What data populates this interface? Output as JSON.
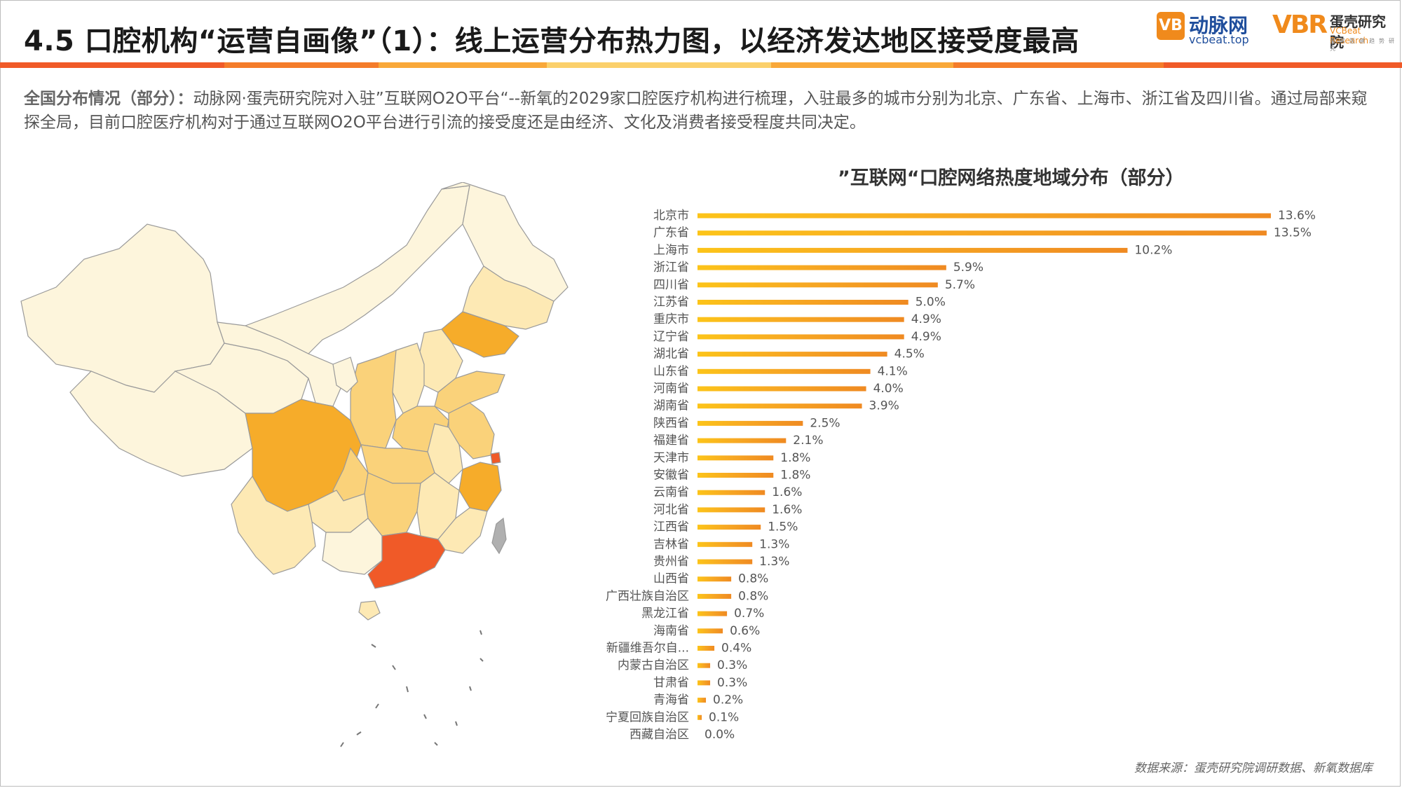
{
  "header": {
    "title": "4.5 口腔机构“运营自画像”（1）：线上运营分布热力图，以经济发达地区接受度最高",
    "stripe_colors": [
      "#f05a28",
      "#f47c2a",
      "#f9a839",
      "#fbd06b",
      "#f9a839",
      "#f47c2a",
      "#f05a28"
    ]
  },
  "logos": {
    "vcbeat": {
      "mark": "VB",
      "name": "动脉网",
      "url": "vcbeat.top"
    },
    "vbr": {
      "mark": "VBR",
      "name": "蛋壳研究院",
      "sub": "VCBeat Research",
      "tag": "未来医健趋势研究"
    }
  },
  "description": {
    "lead": "全国分布情况（部分）：",
    "text": "动脉网·蛋壳研究院对入驻”互联网O2O平台“--新氧的2029家口腔医疗机构进行梳理，入驻最多的城市分别为北京、广东省、上海市、浙江省及四川省。通过局部来窥探全局，目前口腔医疗机构对于通过互联网O2O平台进行引流的接受度还是由经济、文化及消费者接受程度共同决定。"
  },
  "chart_data": {
    "type": "bar",
    "orientation": "horizontal",
    "title": "”互联网“口腔网络热度地域分布（部分）",
    "categories": [
      "北京市",
      "广东省",
      "上海市",
      "浙江省",
      "四川省",
      "江苏省",
      "重庆市",
      "辽宁省",
      "湖北省",
      "山东省",
      "河南省",
      "湖南省",
      "陕西省",
      "福建省",
      "天津市",
      "安徽省",
      "云南省",
      "河北省",
      "江西省",
      "吉林省",
      "贵州省",
      "山西省",
      "广西壮族自治区",
      "黑龙江省",
      "海南省",
      "新疆维吾尔自...",
      "内蒙古自治区",
      "甘肃省",
      "青海省",
      "宁夏回族自治区",
      "西藏自治区"
    ],
    "values": [
      13.6,
      13.5,
      10.2,
      5.9,
      5.7,
      5.0,
      4.9,
      4.9,
      4.5,
      4.1,
      4.0,
      3.9,
      2.5,
      2.1,
      1.8,
      1.8,
      1.6,
      1.6,
      1.5,
      1.3,
      1.3,
      0.8,
      0.8,
      0.7,
      0.6,
      0.4,
      0.3,
      0.3,
      0.2,
      0.1,
      0.0
    ],
    "labels": [
      "13.6%",
      "13.5%",
      "10.2%",
      "5.9%",
      "5.7%",
      "5.0%",
      "4.9%",
      "4.9%",
      "4.5%",
      "4.1%",
      "4.0%",
      "3.9%",
      "2.5%",
      "2.1%",
      "1.8%",
      "1.8%",
      "1.6%",
      "1.6%",
      "1.5%",
      "1.3%",
      "1.3%",
      "0.8%",
      "0.8%",
      "0.7%",
      "0.6%",
      "0.4%",
      "0.3%",
      "0.3%",
      "0.2%",
      "0.1%",
      "0.0%"
    ],
    "xlim": [
      0,
      14
    ],
    "grid": false,
    "bar_colors": [
      "#fcc419",
      "#f7a823",
      "#ef8a22"
    ]
  },
  "map": {
    "region_colors": {
      "highest": "#f05a28",
      "high": "#f6ac2a",
      "mid": "#fad27a",
      "low": "#fde9b4",
      "lowest": "#fdf5dc",
      "taiwan": "#b0b0b0"
    }
  },
  "footer": {
    "source": "数据来源：蛋壳研究院调研数据、新氧数据库"
  }
}
